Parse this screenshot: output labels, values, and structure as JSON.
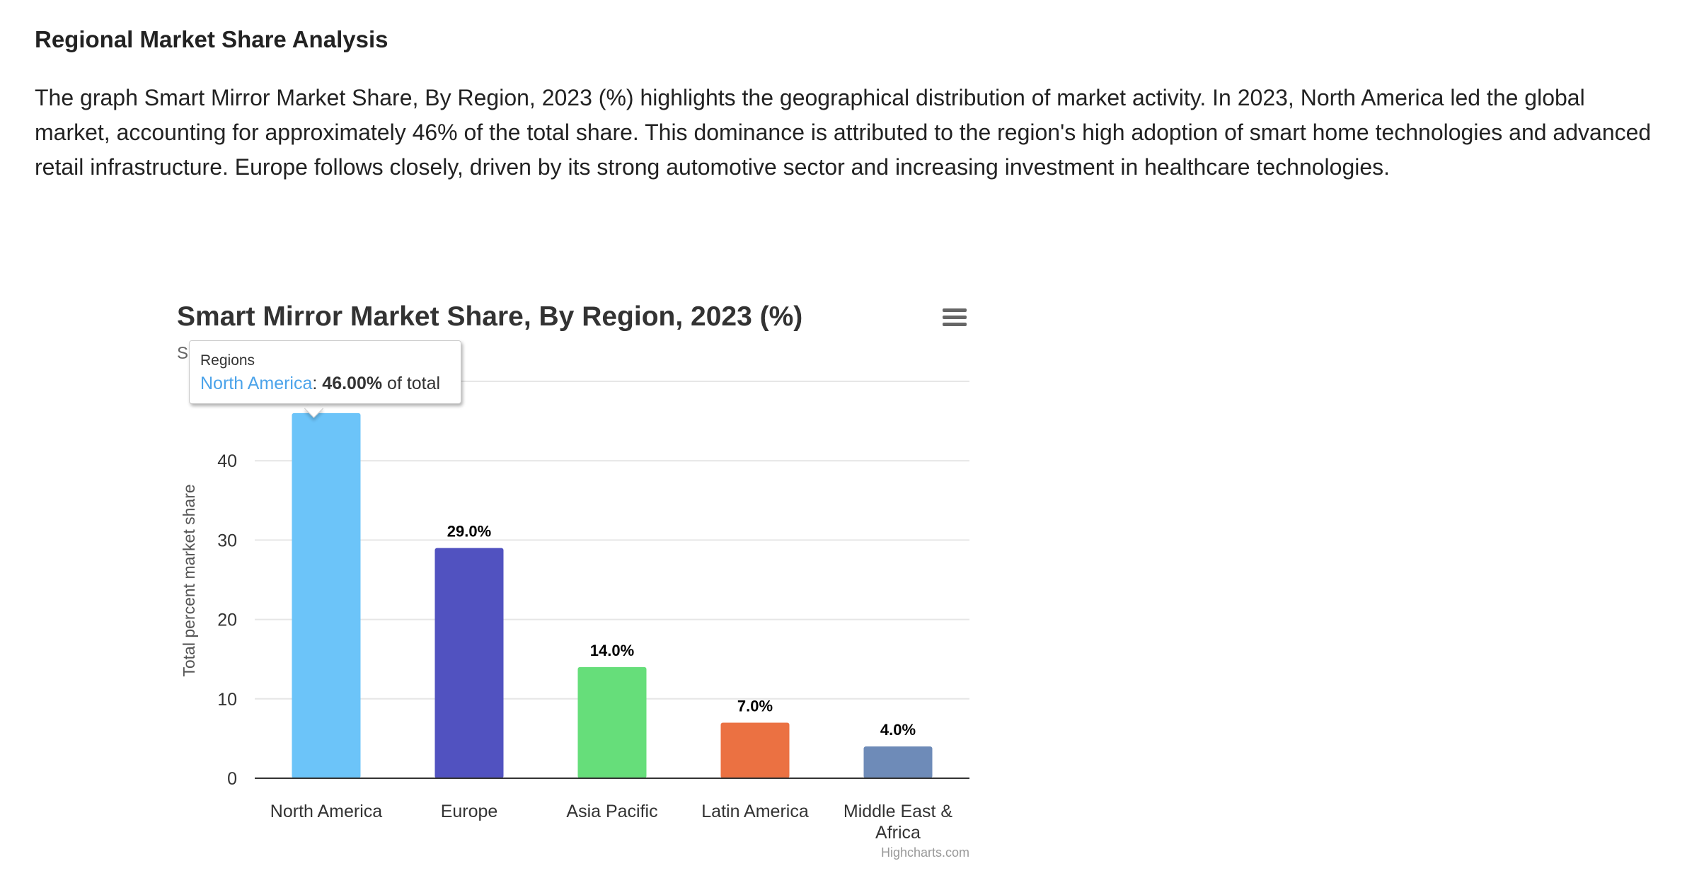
{
  "page": {
    "heading": "Regional Market Share Analysis",
    "paragraph": "The graph Smart Mirror Market Share, By Region, 2023 (%) highlights the geographical distribution of market activity. In 2023, North America led the global market, accounting for approximately 46% of the total share. This dominance is attributed to the region's high adoption of smart home technologies and advanced retail infrastructure. Europe follows closely, driven by its strong automotive sector and increasing investment in healthcare technologies."
  },
  "chart_data": {
    "type": "bar",
    "title": "Smart Mirror Market Share, By Region, 2023 (%)",
    "subtitle_visible_fragment": "S",
    "xlabel": "",
    "ylabel": "Total percent market share",
    "categories": [
      "North America",
      "Europe",
      "Asia Pacific",
      "Latin America",
      "Middle East & Africa"
    ],
    "values": [
      46.0,
      29.0,
      14.0,
      7.0,
      4.0
    ],
    "data_labels": [
      "",
      "29.0%",
      "14.0%",
      "7.0%",
      "4.0%"
    ],
    "colors": [
      "#6cc4f9",
      "#5152c0",
      "#66de7a",
      "#eb7142",
      "#6e8bb8"
    ],
    "ylim": [
      0,
      50
    ],
    "yticks": [
      0,
      10,
      20,
      30,
      40
    ],
    "grid": true,
    "legend": "none",
    "credits": "Highcharts.com",
    "menu_icon": "hamburger-menu-icon",
    "tooltip": {
      "header": "Regions",
      "series": "North America",
      "value": "46.00%",
      "suffix": " of total"
    }
  }
}
